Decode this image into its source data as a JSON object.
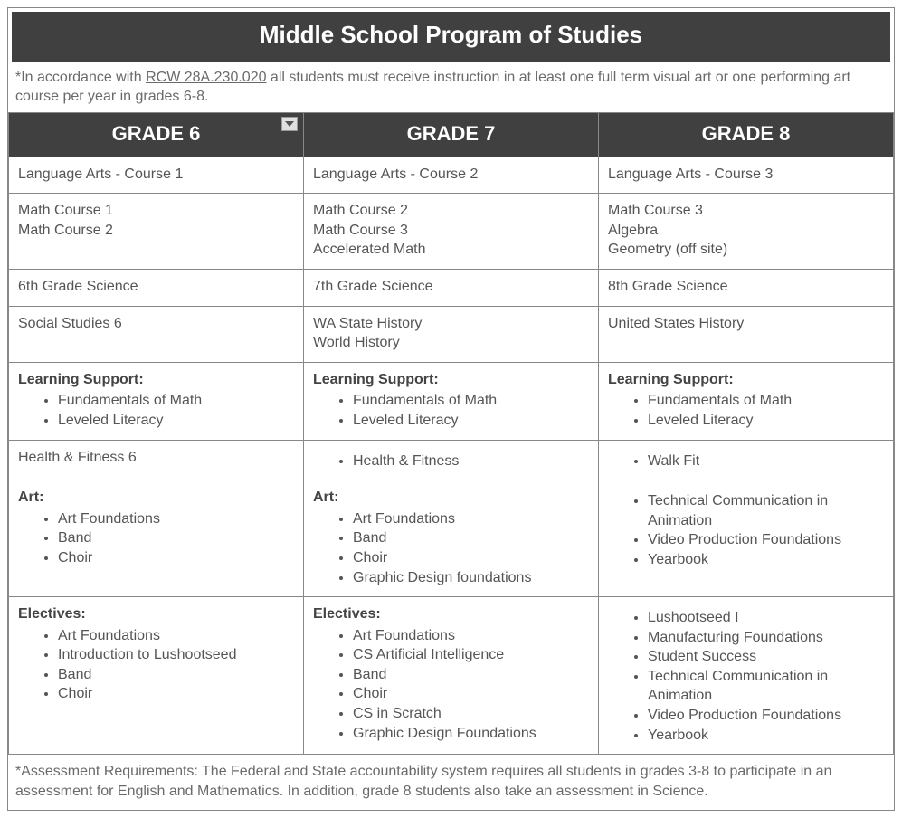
{
  "title": "Middle School Program of Studies",
  "top_note_prefix": "*In accordance with ",
  "top_note_law": "RCW 28A.230.020",
  "top_note_suffix": " all students must receive instruction in at least one full term visual art or one performing art course per year in grades 6-8.",
  "columns": [
    "GRADE 6",
    "GRADE 7",
    "GRADE 8"
  ],
  "rows": {
    "language_arts": {
      "g6": [
        "Language Arts - Course 1"
      ],
      "g7": [
        "Language Arts - Course 2"
      ],
      "g8": [
        "Language Arts - Course 3"
      ]
    },
    "math": {
      "g6": [
        "Math Course 1",
        "Math Course 2"
      ],
      "g7": [
        "Math Course 2",
        "Math Course 3",
        "Accelerated Math"
      ],
      "g8": [
        "Math Course 3",
        "Algebra",
        "Geometry (off site)"
      ]
    },
    "science": {
      "g6": [
        "6th Grade Science"
      ],
      "g7": [
        "7th Grade Science"
      ],
      "g8": [
        "8th Grade Science"
      ]
    },
    "social_studies": {
      "g6": [
        "Social Studies 6"
      ],
      "g7": [
        "WA State History",
        "World History"
      ],
      "g8": [
        "United States History"
      ]
    },
    "learning_support": {
      "heading": "Learning Support:",
      "g6": [
        "Fundamentals of Math",
        "Leveled Literacy"
      ],
      "g7": [
        "Fundamentals of Math",
        "Leveled Literacy"
      ],
      "g8": [
        "Fundamentals of Math",
        "Leveled Literacy"
      ]
    },
    "health": {
      "g6_plain": "Health & Fitness 6",
      "g7": [
        "Health & Fitness"
      ],
      "g8": [
        "Walk Fit"
      ]
    },
    "art": {
      "heading": "Art:",
      "g6": [
        "Art Foundations",
        "Band",
        "Choir"
      ],
      "g7": [
        "Art Foundations",
        "Band",
        "Choir",
        "Graphic Design foundations"
      ],
      "g8": [
        "Technical Communication in Animation",
        "Video Production Foundations",
        "Yearbook"
      ]
    },
    "electives": {
      "heading": "Electives:",
      "g6": [
        "Art Foundations",
        "Introduction to Lushootseed",
        "Band",
        "Choir"
      ],
      "g7": [
        "Art Foundations",
        "CS Artificial Intelligence",
        "Band",
        "Choir",
        "CS in Scratch",
        "Graphic Design Foundations"
      ],
      "g8": [
        "Lushootseed I",
        "Manufacturing Foundations",
        "Student Success",
        "Technical Communication in Animation",
        "Video Production Foundations",
        "Yearbook"
      ]
    }
  },
  "footnote": "*Assessment Requirements: The Federal and State accountability system requires all students in grades 3-8 to participate in an assessment for English and Mathematics. In addition, grade 8 students also take an assessment in Science.",
  "colors": {
    "header_bg": "#404040",
    "header_text": "#ffffff",
    "border": "#888888",
    "body_text": "#555555",
    "note_text": "#6a6a6a"
  }
}
